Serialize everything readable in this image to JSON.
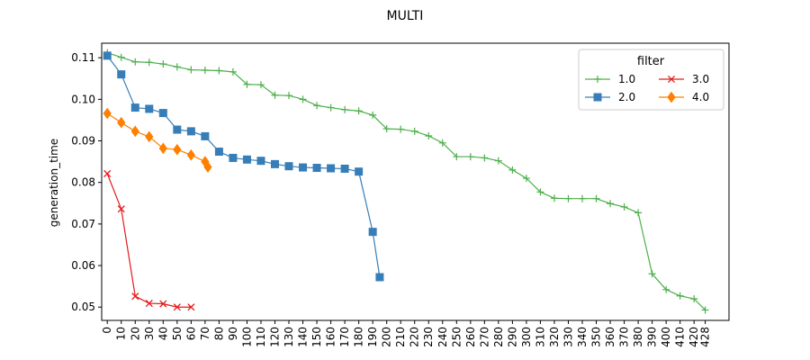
{
  "chart_data": {
    "type": "line",
    "title": "MULTI",
    "xlabel": "",
    "ylabel": "generation_time",
    "xlim": [
      -4,
      445
    ],
    "ylim": [
      0.0468,
      0.1135
    ],
    "x_ticks": [
      0,
      10,
      20,
      30,
      40,
      50,
      60,
      70,
      80,
      90,
      100,
      110,
      120,
      130,
      140,
      150,
      160,
      170,
      180,
      190,
      200,
      210,
      220,
      230,
      240,
      250,
      260,
      270,
      280,
      290,
      300,
      310,
      320,
      330,
      340,
      350,
      360,
      370,
      380,
      390,
      400,
      410,
      420,
      428
    ],
    "x_tick_labels": [
      "0",
      "10",
      "20",
      "30",
      "40",
      "50",
      "60",
      "70",
      "80",
      "90",
      "100",
      "110",
      "120",
      "130",
      "140",
      "150",
      "160",
      "170",
      "180",
      "190",
      "200",
      "210",
      "220",
      "230",
      "240",
      "250",
      "260",
      "270",
      "280",
      "290",
      "300",
      "310",
      "320",
      "330",
      "340",
      "350",
      "360",
      "370",
      "380",
      "390",
      "400",
      "410",
      "420",
      "428"
    ],
    "y_ticks": [
      0.05,
      0.06,
      0.07,
      0.08,
      0.09,
      0.1,
      0.11
    ],
    "y_tick_labels": [
      "0.05",
      "0.06",
      "0.07",
      "0.08",
      "0.09",
      "0.10",
      "0.11"
    ],
    "grid": false,
    "legend": {
      "title": "filter",
      "placement": "top-right",
      "columns": 2,
      "order": [
        "1.0",
        "2.0",
        "3.0",
        "4.0"
      ]
    },
    "series": [
      {
        "name": "1.0",
        "color": "#4daf4a",
        "marker": "plus",
        "x": [
          0,
          10,
          20,
          30,
          40,
          50,
          60,
          70,
          80,
          90,
          100,
          110,
          120,
          130,
          140,
          150,
          160,
          170,
          180,
          190,
          200,
          210,
          220,
          230,
          240,
          250,
          260,
          270,
          280,
          290,
          300,
          310,
          320,
          330,
          340,
          350,
          360,
          370,
          380,
          390,
          400,
          410,
          420,
          428
        ],
        "y": [
          0.1112,
          0.1101,
          0.109,
          0.1089,
          0.1085,
          0.1078,
          0.1071,
          0.107,
          0.1069,
          0.1066,
          0.1036,
          0.1035,
          0.101,
          0.1009,
          0.1,
          0.0985,
          0.098,
          0.0975,
          0.0972,
          0.0962,
          0.0929,
          0.0928,
          0.0923,
          0.0912,
          0.0895,
          0.0862,
          0.0862,
          0.0859,
          0.0852,
          0.083,
          0.081,
          0.0777,
          0.0762,
          0.0761,
          0.0761,
          0.0761,
          0.0749,
          0.0741,
          0.0727,
          0.058,
          0.0542,
          0.0527,
          0.052,
          0.0493
        ]
      },
      {
        "name": "2.0",
        "color": "#377eb8",
        "marker": "square",
        "x": [
          0,
          10,
          20,
          30,
          40,
          50,
          60,
          70,
          80,
          90,
          100,
          110,
          120,
          130,
          140,
          150,
          160,
          170,
          180,
          190,
          195
        ],
        "y": [
          0.1105,
          0.106,
          0.098,
          0.0977,
          0.0967,
          0.0927,
          0.0923,
          0.0911,
          0.0874,
          0.0859,
          0.0855,
          0.0852,
          0.0844,
          0.0839,
          0.0836,
          0.0835,
          0.0834,
          0.0833,
          0.0826,
          0.0681,
          0.0572
        ]
      },
      {
        "name": "3.0",
        "color": "#e41a1c",
        "marker": "x",
        "x": [
          0,
          10,
          20,
          30,
          40,
          50,
          60
        ],
        "y": [
          0.0821,
          0.0736,
          0.0526,
          0.0509,
          0.0508,
          0.05,
          0.05
        ]
      },
      {
        "name": "4.0",
        "color": "#ff7f00",
        "marker": "diamond",
        "x": [
          0,
          10,
          20,
          30,
          40,
          50,
          60,
          70,
          72
        ],
        "y": [
          0.0966,
          0.0944,
          0.0923,
          0.091,
          0.0882,
          0.0879,
          0.0866,
          0.085,
          0.0837
        ]
      }
    ]
  }
}
